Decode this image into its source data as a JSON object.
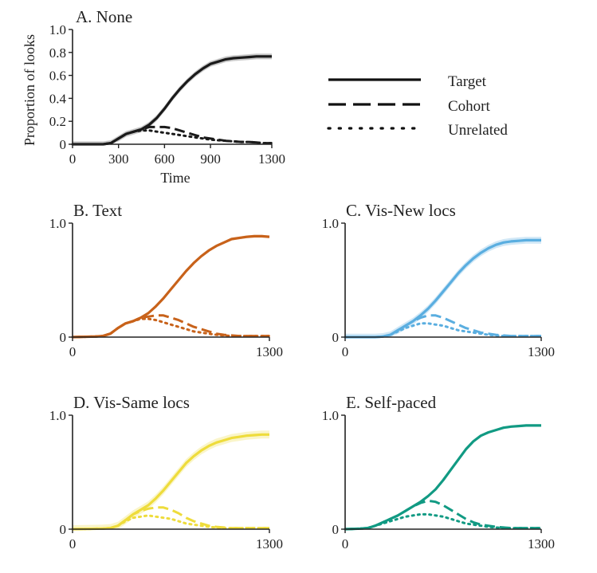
{
  "chart_data": [
    {
      "id": "A",
      "type": "line",
      "title": "A. None",
      "xlabel": "Time",
      "ylabel": "Proportion of looks",
      "xlim": [
        0,
        1300
      ],
      "ylim": [
        0,
        1
      ],
      "xticks": [
        0,
        300,
        600,
        900,
        1300
      ],
      "xtick_labels": [
        "0",
        "300",
        "600",
        "900",
        "1300"
      ],
      "yticks": [
        0,
        0.2,
        0.4,
        0.6,
        0.8,
        1.0
      ],
      "ytick_labels": [
        "0",
        "0.2",
        "0.4",
        "0.6",
        "0.8",
        "1.0"
      ],
      "color": "#1a1a1a",
      "band_color": "#9a9a9a",
      "series": [
        {
          "name": "Target",
          "style": "solid",
          "band": 0.025,
          "x": [
            0,
            200,
            250,
            300,
            350,
            400,
            450,
            500,
            550,
            600,
            650,
            700,
            750,
            800,
            850,
            900,
            950,
            1000,
            1050,
            1100,
            1150,
            1200,
            1250,
            1300
          ],
          "y": [
            0,
            0,
            0.01,
            0.05,
            0.09,
            0.11,
            0.13,
            0.17,
            0.23,
            0.31,
            0.4,
            0.48,
            0.55,
            0.61,
            0.66,
            0.7,
            0.72,
            0.74,
            0.75,
            0.755,
            0.76,
            0.765,
            0.765,
            0.765
          ]
        },
        {
          "name": "Cohort",
          "style": "dash",
          "x": [
            0,
            200,
            250,
            300,
            350,
            400,
            450,
            500,
            550,
            600,
            650,
            700,
            750,
            800,
            850,
            900,
            950,
            1000,
            1050,
            1100,
            1150,
            1200,
            1250,
            1300
          ],
          "y": [
            0,
            0,
            0.01,
            0.05,
            0.09,
            0.11,
            0.13,
            0.15,
            0.15,
            0.15,
            0.14,
            0.12,
            0.1,
            0.08,
            0.06,
            0.05,
            0.04,
            0.03,
            0.025,
            0.02,
            0.02,
            0.015,
            0.01,
            0.01
          ]
        },
        {
          "name": "Unrelated",
          "style": "dot",
          "x": [
            0,
            200,
            250,
            300,
            350,
            400,
            450,
            500,
            550,
            600,
            650,
            700,
            750,
            800,
            850,
            900,
            950,
            1000,
            1050,
            1100,
            1150,
            1200,
            1250,
            1300
          ],
          "y": [
            0,
            0,
            0.01,
            0.05,
            0.09,
            0.11,
            0.12,
            0.12,
            0.11,
            0.1,
            0.09,
            0.08,
            0.07,
            0.06,
            0.05,
            0.04,
            0.035,
            0.03,
            0.025,
            0.02,
            0.02,
            0.015,
            0.01,
            0.01
          ]
        }
      ]
    },
    {
      "id": "B",
      "type": "line",
      "title": "B. Text",
      "xlim": [
        0,
        1300
      ],
      "ylim": [
        0,
        1
      ],
      "xticks": [
        0,
        1300
      ],
      "xtick_labels": [
        "0",
        "1300"
      ],
      "yticks": [
        0,
        1.0
      ],
      "ytick_labels": [
        "0",
        "1.0"
      ],
      "color": "#c8621a",
      "band_color": "#e8a878",
      "series": [
        {
          "name": "Target",
          "style": "solid",
          "band": 0.012,
          "x": [
            0,
            150,
            200,
            250,
            300,
            350,
            400,
            450,
            500,
            550,
            600,
            650,
            700,
            750,
            800,
            850,
            900,
            950,
            1000,
            1050,
            1100,
            1150,
            1200,
            1250,
            1300
          ],
          "y": [
            0,
            0.005,
            0.01,
            0.03,
            0.08,
            0.12,
            0.14,
            0.17,
            0.21,
            0.27,
            0.34,
            0.42,
            0.5,
            0.58,
            0.65,
            0.71,
            0.76,
            0.8,
            0.83,
            0.86,
            0.87,
            0.88,
            0.885,
            0.885,
            0.88
          ]
        },
        {
          "name": "Cohort",
          "style": "dash",
          "x": [
            0,
            150,
            200,
            250,
            300,
            350,
            400,
            450,
            500,
            550,
            600,
            650,
            700,
            750,
            800,
            850,
            900,
            950,
            1000,
            1050,
            1100,
            1150,
            1200,
            1250,
            1300
          ],
          "y": [
            0,
            0.005,
            0.01,
            0.03,
            0.08,
            0.12,
            0.14,
            0.17,
            0.18,
            0.19,
            0.19,
            0.17,
            0.15,
            0.12,
            0.09,
            0.07,
            0.05,
            0.03,
            0.02,
            0.015,
            0.01,
            0.01,
            0.01,
            0.01,
            0.01
          ]
        },
        {
          "name": "Unrelated",
          "style": "dot",
          "x": [
            0,
            150,
            200,
            250,
            300,
            350,
            400,
            450,
            500,
            550,
            600,
            650,
            700,
            750,
            800,
            850,
            900,
            950,
            1000,
            1050,
            1100,
            1150,
            1200,
            1250,
            1300
          ],
          "y": [
            0,
            0.005,
            0.01,
            0.03,
            0.08,
            0.12,
            0.14,
            0.16,
            0.16,
            0.15,
            0.13,
            0.11,
            0.09,
            0.07,
            0.05,
            0.04,
            0.03,
            0.02,
            0.015,
            0.01,
            0.01,
            0.01,
            0.01,
            0.01,
            0.01
          ]
        }
      ]
    },
    {
      "id": "C",
      "type": "line",
      "title": "C. Vis-New locs",
      "xlim": [
        0,
        1300
      ],
      "ylim": [
        0,
        1
      ],
      "xticks": [
        0,
        1300
      ],
      "xtick_labels": [
        "0",
        "1300"
      ],
      "yticks": [
        0,
        1.0
      ],
      "ytick_labels": [
        "0",
        "1.0"
      ],
      "color": "#5aaee0",
      "band_color": "#a9d3ef",
      "series": [
        {
          "name": "Target",
          "style": "solid",
          "band": 0.03,
          "x": [
            0,
            200,
            250,
            300,
            350,
            400,
            450,
            500,
            550,
            600,
            650,
            700,
            750,
            800,
            850,
            900,
            950,
            1000,
            1050,
            1100,
            1150,
            1200,
            1250,
            1300
          ],
          "y": [
            0,
            0,
            0.005,
            0.02,
            0.06,
            0.1,
            0.14,
            0.19,
            0.25,
            0.32,
            0.4,
            0.48,
            0.56,
            0.63,
            0.69,
            0.74,
            0.78,
            0.81,
            0.83,
            0.84,
            0.845,
            0.85,
            0.85,
            0.85
          ]
        },
        {
          "name": "Cohort",
          "style": "dash",
          "x": [
            0,
            200,
            250,
            300,
            350,
            400,
            450,
            500,
            550,
            600,
            650,
            700,
            750,
            800,
            850,
            900,
            950,
            1000,
            1050,
            1100,
            1150,
            1200,
            1250,
            1300
          ],
          "y": [
            0,
            0,
            0.005,
            0.02,
            0.06,
            0.1,
            0.14,
            0.17,
            0.19,
            0.19,
            0.17,
            0.14,
            0.11,
            0.08,
            0.06,
            0.04,
            0.03,
            0.02,
            0.015,
            0.01,
            0.01,
            0.01,
            0.01,
            0.01
          ]
        },
        {
          "name": "Unrelated",
          "style": "dot",
          "x": [
            0,
            200,
            250,
            300,
            350,
            400,
            450,
            500,
            550,
            600,
            650,
            700,
            750,
            800,
            850,
            900,
            950,
            1000,
            1050,
            1100,
            1150,
            1200,
            1250,
            1300
          ],
          "y": [
            0,
            0,
            0.005,
            0.02,
            0.05,
            0.08,
            0.1,
            0.12,
            0.12,
            0.11,
            0.1,
            0.08,
            0.06,
            0.05,
            0.04,
            0.03,
            0.02,
            0.015,
            0.01,
            0.01,
            0.01,
            0.01,
            0.01,
            0.01
          ]
        }
      ]
    },
    {
      "id": "D",
      "type": "line",
      "title": "D. Vis-Same locs",
      "xlim": [
        0,
        1300
      ],
      "ylim": [
        0,
        1
      ],
      "xticks": [
        0,
        1300
      ],
      "xtick_labels": [
        "0",
        "1300"
      ],
      "yticks": [
        0,
        1.0
      ],
      "ytick_labels": [
        "0",
        "1.0"
      ],
      "color": "#eedc3c",
      "band_color": "#f6ec9c",
      "series": [
        {
          "name": "Target",
          "style": "solid",
          "band": 0.035,
          "x": [
            0,
            200,
            250,
            300,
            350,
            400,
            450,
            500,
            550,
            600,
            650,
            700,
            750,
            800,
            850,
            900,
            950,
            1000,
            1050,
            1100,
            1150,
            1200,
            1250,
            1300
          ],
          "y": [
            0,
            0.005,
            0.01,
            0.03,
            0.08,
            0.13,
            0.17,
            0.21,
            0.27,
            0.34,
            0.42,
            0.5,
            0.58,
            0.64,
            0.69,
            0.73,
            0.76,
            0.78,
            0.8,
            0.81,
            0.82,
            0.825,
            0.83,
            0.83
          ]
        },
        {
          "name": "Cohort",
          "style": "dash",
          "x": [
            0,
            200,
            250,
            300,
            350,
            400,
            450,
            500,
            550,
            600,
            650,
            700,
            750,
            800,
            850,
            900,
            950,
            1000,
            1050,
            1100,
            1150,
            1200,
            1250,
            1300
          ],
          "y": [
            0,
            0.005,
            0.01,
            0.03,
            0.08,
            0.13,
            0.16,
            0.18,
            0.19,
            0.19,
            0.17,
            0.14,
            0.1,
            0.07,
            0.05,
            0.03,
            0.02,
            0.015,
            0.01,
            0.01,
            0.01,
            0.01,
            0.01,
            0.01
          ]
        },
        {
          "name": "Unrelated",
          "style": "dot",
          "x": [
            0,
            200,
            250,
            300,
            350,
            400,
            450,
            500,
            550,
            600,
            650,
            700,
            750,
            800,
            850,
            900,
            950,
            1000,
            1050,
            1100,
            1150,
            1200,
            1250,
            1300
          ],
          "y": [
            0,
            0.005,
            0.01,
            0.03,
            0.07,
            0.1,
            0.11,
            0.12,
            0.11,
            0.1,
            0.09,
            0.07,
            0.05,
            0.04,
            0.03,
            0.02,
            0.015,
            0.01,
            0.01,
            0.01,
            0.01,
            0.01,
            0.01,
            0.01
          ]
        }
      ]
    },
    {
      "id": "E",
      "type": "line",
      "title": "E. Self-paced",
      "xlim": [
        0,
        1300
      ],
      "ylim": [
        0,
        1
      ],
      "xticks": [
        0,
        1300
      ],
      "xtick_labels": [
        "0",
        "1300"
      ],
      "yticks": [
        0,
        1.0
      ],
      "ytick_labels": [
        "0",
        "1.0"
      ],
      "color": "#119a83",
      "band_color": "#7cccbd",
      "series": [
        {
          "name": "Target",
          "style": "solid",
          "band": 0.01,
          "x": [
            0,
            100,
            150,
            200,
            250,
            300,
            350,
            400,
            450,
            500,
            550,
            600,
            650,
            700,
            750,
            800,
            850,
            900,
            950,
            1000,
            1050,
            1100,
            1150,
            1200,
            1250,
            1300
          ],
          "y": [
            0,
            0.005,
            0.01,
            0.03,
            0.06,
            0.09,
            0.12,
            0.16,
            0.2,
            0.24,
            0.29,
            0.35,
            0.43,
            0.52,
            0.61,
            0.7,
            0.77,
            0.82,
            0.85,
            0.87,
            0.89,
            0.9,
            0.905,
            0.91,
            0.91,
            0.91
          ]
        },
        {
          "name": "Cohort",
          "style": "dash",
          "x": [
            0,
            100,
            150,
            200,
            250,
            300,
            350,
            400,
            450,
            500,
            550,
            600,
            650,
            700,
            750,
            800,
            850,
            900,
            950,
            1000,
            1050,
            1100,
            1150,
            1200,
            1250,
            1300
          ],
          "y": [
            0,
            0.005,
            0.01,
            0.03,
            0.06,
            0.09,
            0.12,
            0.16,
            0.2,
            0.23,
            0.25,
            0.24,
            0.21,
            0.17,
            0.13,
            0.09,
            0.06,
            0.04,
            0.03,
            0.02,
            0.015,
            0.01,
            0.01,
            0.01,
            0.01,
            0.01
          ]
        },
        {
          "name": "Unrelated",
          "style": "dot",
          "x": [
            0,
            100,
            150,
            200,
            250,
            300,
            350,
            400,
            450,
            500,
            550,
            600,
            650,
            700,
            750,
            800,
            850,
            900,
            950,
            1000,
            1050,
            1100,
            1150,
            1200,
            1250,
            1300
          ],
          "y": [
            0,
            0.005,
            0.01,
            0.03,
            0.05,
            0.07,
            0.09,
            0.11,
            0.12,
            0.13,
            0.13,
            0.12,
            0.11,
            0.09,
            0.07,
            0.05,
            0.04,
            0.03,
            0.02,
            0.015,
            0.01,
            0.01,
            0.01,
            0.01,
            0.01,
            0.01
          ]
        }
      ]
    }
  ],
  "legend": {
    "placement": "right of panel A",
    "items": [
      {
        "label": "Target",
        "style": "solid"
      },
      {
        "label": "Cohort",
        "style": "dash"
      },
      {
        "label": "Unrelated",
        "style": "dot"
      }
    ]
  }
}
